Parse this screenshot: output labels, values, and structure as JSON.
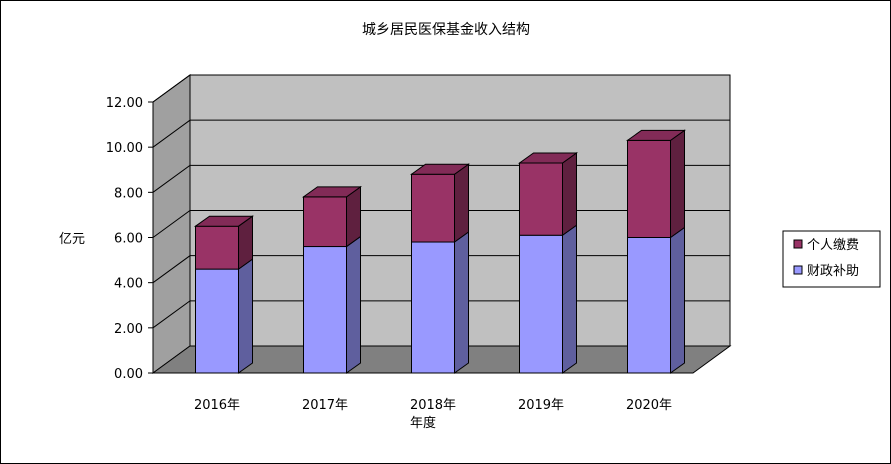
{
  "chart_data": {
    "type": "bar",
    "stacked": true,
    "three_d": true,
    "title": "城乡居民医保基金收入结构",
    "xlabel": "年度",
    "ylabel": "亿元",
    "categories": [
      "2016年",
      "2017年",
      "2018年",
      "2019年",
      "2020年"
    ],
    "ylim": [
      0,
      12
    ],
    "yticks": [
      "0.00",
      "2.00",
      "4.00",
      "6.00",
      "8.00",
      "10.00",
      "12.00"
    ],
    "grid": true,
    "legend_position": "right",
    "series": [
      {
        "name": "财政补助",
        "values": [
          4.6,
          5.6,
          5.8,
          6.1,
          6.0
        ],
        "color": "#9999ff"
      },
      {
        "name": "个人缴费",
        "values": [
          1.9,
          2.2,
          3.0,
          3.2,
          4.3
        ],
        "color": "#993366"
      }
    ]
  },
  "colors": {
    "wall": "#c0c0c0",
    "wall_left": "#a0a0a0",
    "floor": "#808080",
    "grid": "#000000"
  }
}
